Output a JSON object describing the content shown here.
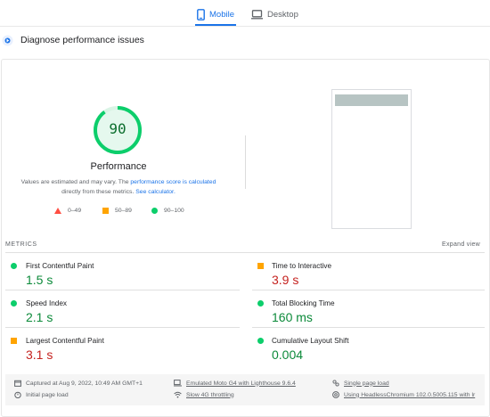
{
  "tabs": {
    "mobile": "Mobile",
    "desktop": "Desktop"
  },
  "section": {
    "title": "Diagnose performance issues"
  },
  "score": {
    "value": "90",
    "fraction": 0.9,
    "title": "Performance",
    "description_prefix": "Values are estimated and may vary. The",
    "description_link": "performance score is calculated",
    "description_middle": "directly from these metrics.",
    "description_link2": "See calculator."
  },
  "legend": {
    "fail": "0–49",
    "average": "50–89",
    "pass": "90–100"
  },
  "metrics": {
    "label": "METRICS",
    "expand": "Expand view",
    "fcp": {
      "name": "First Contentful Paint",
      "value": "1.5 s"
    },
    "tti": {
      "name": "Time to Interactive",
      "value": "3.9 s"
    },
    "si": {
      "name": "Speed Index",
      "value": "2.1 s"
    },
    "tbt": {
      "name": "Total Blocking Time",
      "value": "160 ms"
    },
    "lcp": {
      "name": "Largest Contentful Paint",
      "value": "3.1 s"
    },
    "cls": {
      "name": "Cumulative Layout Shift",
      "value": "0.004"
    }
  },
  "footer": {
    "captured": "Captured at Aug 9, 2022, 10:49 AM GMT+1",
    "device": "Emulated Moto G4 with Lighthouse 9.6.4",
    "page_load": "Single page load",
    "initial": "Initial page load",
    "throttling": "Slow 4G throttling",
    "browser": "Using HeadlessChromium 102.0.5005.115 with lr"
  },
  "colors": {
    "accent": "#1a73e8",
    "pass": "#0cce6b",
    "average": "#ffa400",
    "fail": "#ff4e42"
  }
}
